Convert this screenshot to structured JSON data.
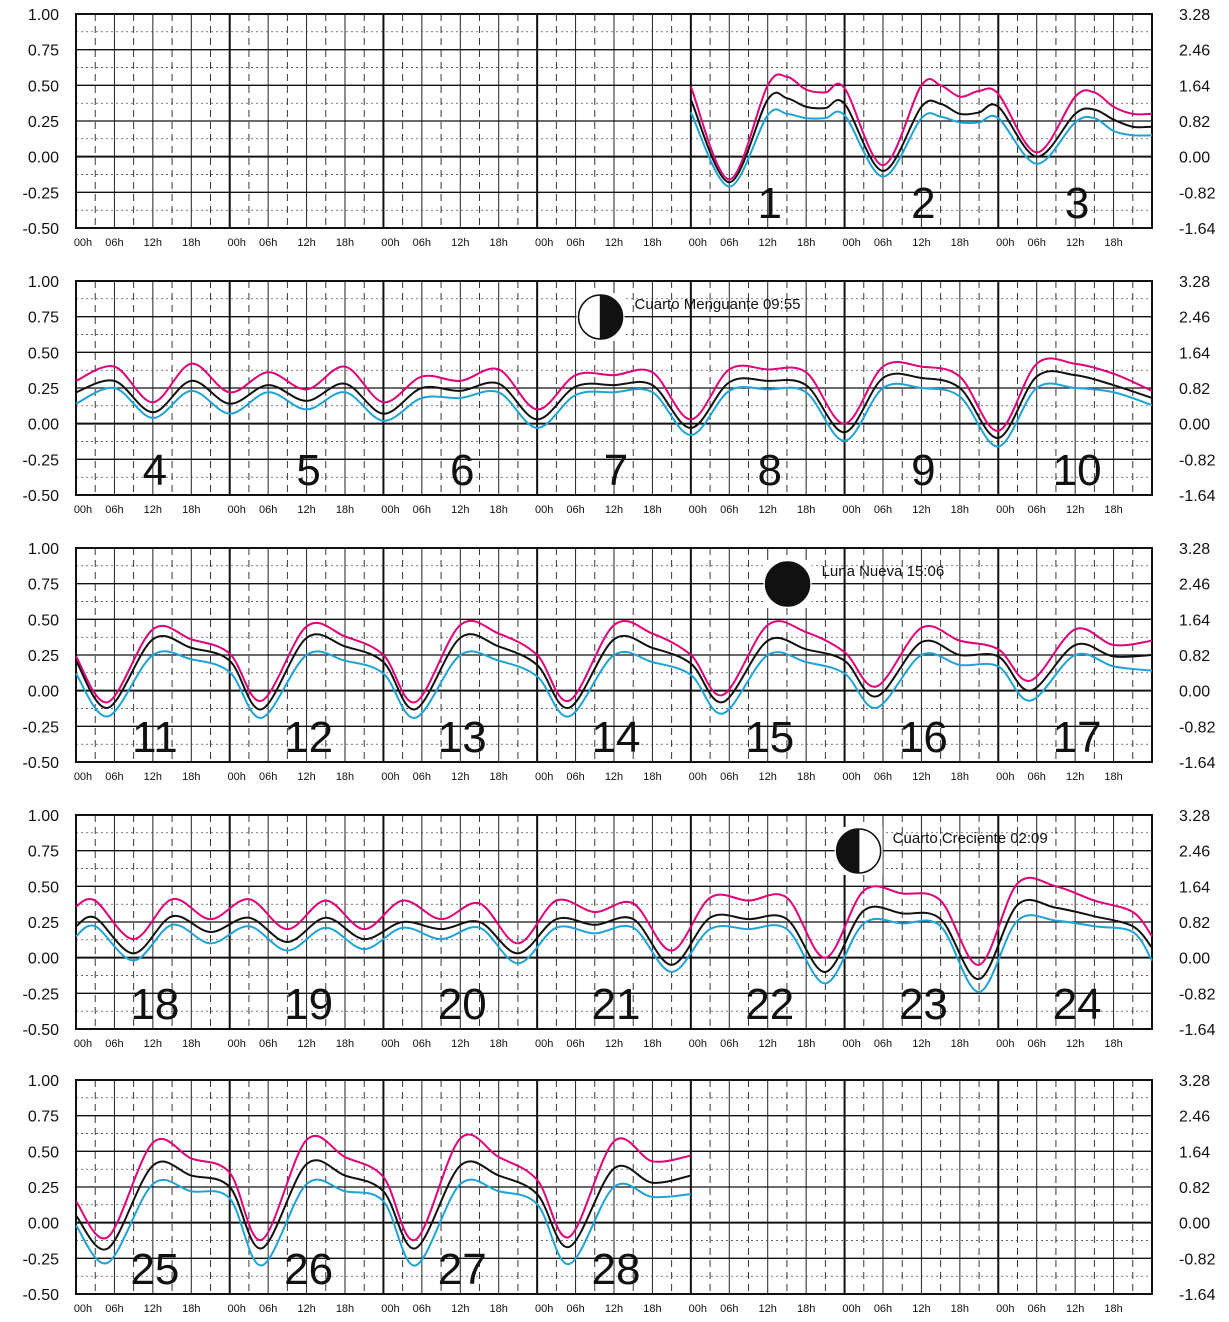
{
  "chart_data": {
    "type": "line",
    "panels": [
      {
        "start_offset_days": 4,
        "days": [
          1,
          2,
          3
        ],
        "moon_phase": null,
        "series": [
          {
            "name": "",
            "color": "#e0007a",
            "x": [
              0,
              6,
              12,
              15,
              18,
              21,
              24,
              30,
              36,
              39,
              42,
              45,
              48,
              54,
              60,
              63,
              66,
              69,
              72
            ],
            "values": [
              0.49,
              -0.16,
              0.5,
              0.56,
              0.47,
              0.45,
              0.48,
              -0.06,
              0.5,
              0.5,
              0.42,
              0.46,
              0.44,
              0.03,
              0.42,
              0.45,
              0.35,
              0.3,
              0.3
            ]
          },
          {
            "name": "",
            "color": "#111111",
            "x": [
              0,
              6,
              12,
              15,
              18,
              21,
              24,
              30,
              36,
              39,
              42,
              45,
              48,
              54,
              60,
              63,
              66,
              69,
              72
            ],
            "values": [
              0.4,
              -0.18,
              0.4,
              0.41,
              0.35,
              0.34,
              0.37,
              -0.1,
              0.35,
              0.37,
              0.3,
              0.31,
              0.35,
              0.0,
              0.3,
              0.33,
              0.26,
              0.21,
              0.21
            ]
          },
          {
            "name": "",
            "color": "#1fa3d6",
            "x": [
              0,
              6,
              12,
              15,
              18,
              21,
              24,
              30,
              36,
              39,
              42,
              45,
              48,
              54,
              60,
              63,
              66,
              69,
              72
            ],
            "values": [
              0.31,
              -0.21,
              0.29,
              0.3,
              0.27,
              0.27,
              0.29,
              -0.14,
              0.27,
              0.28,
              0.24,
              0.24,
              0.27,
              -0.05,
              0.24,
              0.27,
              0.18,
              0.15,
              0.15
            ]
          }
        ]
      },
      {
        "start_offset_days": 0,
        "days": [
          4,
          5,
          6,
          7,
          8,
          9,
          10
        ],
        "moon_phase": {
          "type": "last-quarter",
          "label": "Cuarto Menguante 09:55",
          "day": 7,
          "hour": 9.9
        },
        "series": [
          {
            "name": "",
            "color": "#e0007a",
            "x": [
              0,
              6,
              12,
              18,
              24,
              30,
              36,
              42,
              48,
              54,
              60,
              66,
              72,
              78,
              84,
              90,
              96,
              102,
              108,
              114,
              120,
              126,
              132,
              138,
              144,
              150,
              156,
              162,
              168
            ],
            "values": [
              0.3,
              0.4,
              0.15,
              0.42,
              0.22,
              0.36,
              0.24,
              0.4,
              0.15,
              0.33,
              0.3,
              0.38,
              0.1,
              0.34,
              0.34,
              0.36,
              0.03,
              0.38,
              0.38,
              0.36,
              0.0,
              0.4,
              0.4,
              0.33,
              -0.05,
              0.42,
              0.42,
              0.35,
              0.23
            ]
          },
          {
            "name": "",
            "color": "#111111",
            "x": [
              0,
              6,
              12,
              18,
              24,
              30,
              36,
              42,
              48,
              54,
              60,
              66,
              72,
              78,
              84,
              90,
              96,
              102,
              108,
              114,
              120,
              126,
              132,
              138,
              144,
              150,
              156,
              162,
              168
            ],
            "values": [
              0.22,
              0.3,
              0.08,
              0.3,
              0.14,
              0.27,
              0.16,
              0.28,
              0.07,
              0.25,
              0.23,
              0.28,
              0.03,
              0.26,
              0.27,
              0.27,
              -0.03,
              0.29,
              0.3,
              0.27,
              -0.06,
              0.32,
              0.32,
              0.25,
              -0.1,
              0.33,
              0.34,
              0.27,
              0.18
            ]
          },
          {
            "name": "",
            "color": "#1fa3d6",
            "x": [
              0,
              6,
              12,
              18,
              24,
              30,
              36,
              42,
              48,
              54,
              60,
              66,
              72,
              78,
              84,
              90,
              96,
              102,
              108,
              114,
              120,
              126,
              132,
              138,
              144,
              150,
              156,
              162,
              168
            ],
            "values": [
              0.14,
              0.25,
              0.04,
              0.23,
              0.07,
              0.22,
              0.1,
              0.22,
              0.02,
              0.18,
              0.18,
              0.22,
              -0.03,
              0.2,
              0.22,
              0.22,
              -0.08,
              0.23,
              0.24,
              0.22,
              -0.12,
              0.25,
              0.25,
              0.19,
              -0.16,
              0.25,
              0.25,
              0.22,
              0.13
            ]
          }
        ]
      },
      {
        "start_offset_days": 0,
        "days": [
          11,
          12,
          13,
          14,
          15,
          16,
          17
        ],
        "moon_phase": {
          "type": "new-moon",
          "label": "Luna Nueva 15:06",
          "day": 15,
          "hour": 15.1
        },
        "series": [
          {
            "name": "",
            "color": "#e0007a",
            "x": [
              0,
              5,
              12,
              18,
              24,
              29,
              36,
              42,
              48,
              53,
              60,
              66,
              72,
              77,
              84,
              90,
              96,
              101,
              108,
              114,
              120,
              125,
              132,
              138,
              144,
              149,
              156,
              162,
              168
            ],
            "values": [
              0.24,
              -0.08,
              0.43,
              0.36,
              0.26,
              -0.07,
              0.45,
              0.38,
              0.25,
              -0.08,
              0.46,
              0.4,
              0.25,
              -0.07,
              0.46,
              0.4,
              0.25,
              -0.03,
              0.46,
              0.41,
              0.27,
              0.03,
              0.44,
              0.35,
              0.29,
              0.07,
              0.43,
              0.32,
              0.35
            ]
          },
          {
            "name": "",
            "color": "#111111",
            "x": [
              0,
              5,
              12,
              18,
              24,
              29,
              36,
              42,
              48,
              53,
              60,
              66,
              72,
              77,
              84,
              90,
              96,
              101,
              108,
              114,
              120,
              125,
              132,
              138,
              144,
              149,
              156,
              162,
              168
            ],
            "values": [
              0.21,
              -0.12,
              0.36,
              0.3,
              0.21,
              -0.13,
              0.37,
              0.31,
              0.2,
              -0.13,
              0.37,
              0.31,
              0.18,
              -0.12,
              0.36,
              0.3,
              0.19,
              -0.08,
              0.35,
              0.29,
              0.21,
              -0.04,
              0.34,
              0.25,
              0.24,
              0.0,
              0.32,
              0.24,
              0.25
            ]
          },
          {
            "name": "",
            "color": "#1fa3d6",
            "x": [
              0,
              5,
              12,
              18,
              24,
              29,
              36,
              42,
              48,
              53,
              60,
              66,
              72,
              77,
              84,
              90,
              96,
              101,
              108,
              114,
              120,
              125,
              132,
              138,
              144,
              149,
              156,
              162,
              168
            ],
            "values": [
              0.12,
              -0.18,
              0.25,
              0.22,
              0.13,
              -0.19,
              0.25,
              0.21,
              0.12,
              -0.19,
              0.25,
              0.21,
              0.1,
              -0.18,
              0.25,
              0.2,
              0.11,
              -0.16,
              0.25,
              0.2,
              0.12,
              -0.12,
              0.25,
              0.18,
              0.17,
              -0.07,
              0.25,
              0.17,
              0.14
            ]
          }
        ]
      },
      {
        "start_offset_days": 0,
        "days": [
          18,
          19,
          20,
          21,
          22,
          23,
          24
        ],
        "moon_phase": {
          "type": "first-quarter",
          "label": "Cuarto Creciente 02:09",
          "day": 23,
          "hour": 2.2
        },
        "series": [
          {
            "name": "",
            "color": "#e0007a",
            "x": [
              0,
              3,
              9,
              15,
              21,
              27,
              33,
              39,
              45,
              51,
              57,
              63,
              69,
              75,
              81,
              87,
              93,
              99,
              105,
              111,
              117,
              123,
              129,
              135,
              141,
              147,
              153,
              159,
              165,
              168
            ],
            "values": [
              0.36,
              0.4,
              0.13,
              0.41,
              0.27,
              0.41,
              0.2,
              0.4,
              0.2,
              0.4,
              0.27,
              0.38,
              0.1,
              0.4,
              0.32,
              0.38,
              0.05,
              0.42,
              0.4,
              0.42,
              0.0,
              0.47,
              0.45,
              0.4,
              -0.05,
              0.52,
              0.5,
              0.4,
              0.32,
              0.15
            ]
          },
          {
            "name": "",
            "color": "#111111",
            "x": [
              0,
              3,
              9,
              15,
              21,
              27,
              33,
              39,
              45,
              51,
              57,
              63,
              69,
              75,
              81,
              87,
              93,
              99,
              105,
              111,
              117,
              123,
              129,
              135,
              141,
              147,
              153,
              159,
              165,
              168
            ],
            "values": [
              0.22,
              0.28,
              0.03,
              0.29,
              0.18,
              0.28,
              0.11,
              0.28,
              0.13,
              0.25,
              0.2,
              0.25,
              0.03,
              0.27,
              0.23,
              0.27,
              -0.05,
              0.28,
              0.27,
              0.27,
              -0.1,
              0.33,
              0.31,
              0.27,
              -0.15,
              0.37,
              0.35,
              0.29,
              0.22,
              0.07
            ]
          },
          {
            "name": "",
            "color": "#1fa3d6",
            "x": [
              0,
              3,
              9,
              15,
              21,
              27,
              33,
              39,
              45,
              51,
              57,
              63,
              69,
              75,
              81,
              87,
              93,
              99,
              105,
              111,
              117,
              123,
              129,
              135,
              141,
              147,
              153,
              159,
              165,
              168
            ],
            "values": [
              0.15,
              0.22,
              -0.02,
              0.23,
              0.1,
              0.22,
              0.05,
              0.21,
              0.06,
              0.21,
              0.13,
              0.21,
              -0.04,
              0.21,
              0.17,
              0.21,
              -0.1,
              0.2,
              0.2,
              0.2,
              -0.18,
              0.24,
              0.24,
              0.22,
              -0.24,
              0.26,
              0.26,
              0.22,
              0.18,
              -0.02
            ]
          }
        ]
      },
      {
        "start_offset_days": 0,
        "days": [
          25,
          26,
          27,
          28
        ],
        "moon_phase": null,
        "series": [
          {
            "name": "",
            "color": "#e0007a",
            "x": [
              0,
              5,
              12,
              18,
              24,
              29,
              36,
              42,
              48,
              53,
              60,
              66,
              72,
              77,
              84,
              90,
              96
            ],
            "values": [
              0.15,
              -0.1,
              0.56,
              0.45,
              0.35,
              -0.12,
              0.58,
              0.46,
              0.32,
              -0.12,
              0.59,
              0.46,
              0.3,
              -0.1,
              0.57,
              0.43,
              0.47
            ]
          },
          {
            "name": "",
            "color": "#111111",
            "x": [
              0,
              5,
              12,
              18,
              24,
              29,
              36,
              42,
              48,
              53,
              60,
              66,
              72,
              77,
              84,
              90,
              96
            ],
            "values": [
              0.05,
              -0.18,
              0.4,
              0.33,
              0.25,
              -0.18,
              0.41,
              0.33,
              0.22,
              -0.18,
              0.4,
              0.33,
              0.2,
              -0.17,
              0.38,
              0.28,
              0.33
            ]
          },
          {
            "name": "",
            "color": "#1fa3d6",
            "x": [
              0,
              5,
              12,
              18,
              24,
              29,
              36,
              42,
              48,
              53,
              60,
              66,
              72,
              77,
              84,
              90,
              96
            ],
            "values": [
              -0.02,
              -0.28,
              0.27,
              0.22,
              0.17,
              -0.3,
              0.27,
              0.22,
              0.15,
              -0.3,
              0.27,
              0.22,
              0.13,
              -0.29,
              0.25,
              0.18,
              0.2
            ]
          }
        ]
      }
    ],
    "x_tick_labels": [
      "00h",
      "06h",
      "12h",
      "18h"
    ],
    "y_left_ticks": [
      "1.00",
      "0.75",
      "0.50",
      "0.25",
      "0.00",
      "-0.25",
      "-0.50"
    ],
    "y_right_ticks": [
      "3.28",
      "2.46",
      "1.64",
      "0.82",
      "0.00",
      "-0.82",
      "-1.64"
    ],
    "ylim": [
      -0.5,
      1.0
    ],
    "days_per_row": 7,
    "grid": true
  }
}
